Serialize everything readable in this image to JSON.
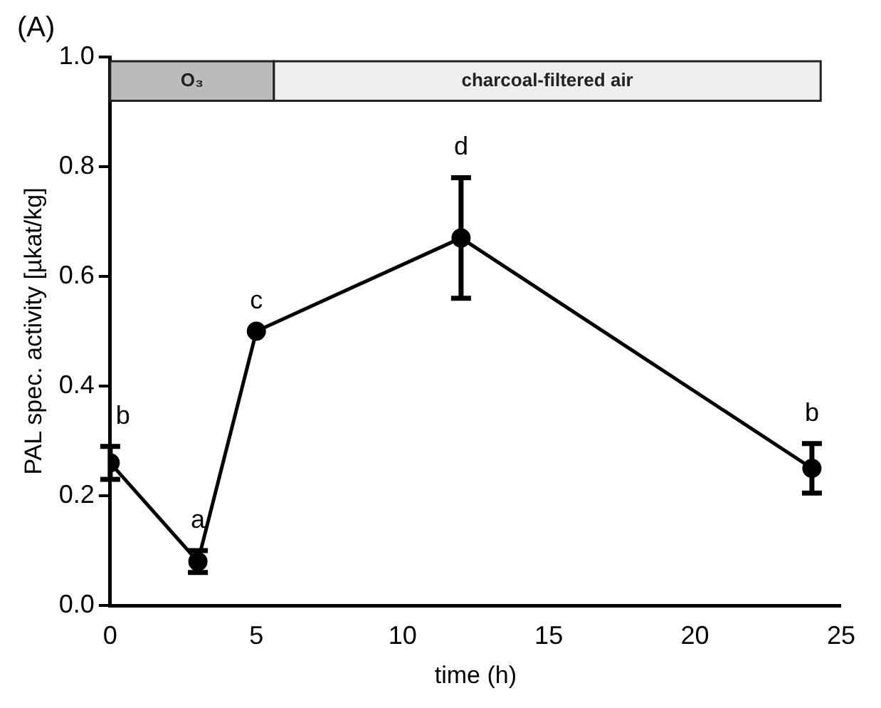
{
  "chart_data": {
    "type": "line",
    "xlabel": "time (h)",
    "ylabel": "PAL spec. activity [µkat/kg]",
    "x": [
      0,
      3,
      5,
      12,
      24
    ],
    "series": [
      {
        "color": "#000000",
        "values": [
          0.26,
          0.08,
          0.5,
          0.67,
          0.25
        ],
        "errors": [
          0.03,
          0.02,
          null,
          0.11,
          0.045
        ]
      }
    ],
    "xlim": [
      0,
      25
    ],
    "xticks": [
      0,
      5,
      10,
      15,
      20,
      25
    ],
    "ylim": [
      0,
      1
    ],
    "yticks": [
      {
        "value": 0,
        "label": "0.0"
      },
      {
        "value": 0.2,
        "label": "0.2"
      },
      {
        "value": 0.4,
        "label": "0.4"
      },
      {
        "value": 0.6,
        "label": "0.6"
      },
      {
        "value": 0.8,
        "label": "0.8"
      },
      {
        "value": 1,
        "label": "1.0"
      }
    ],
    "bands": [
      {
        "axis": "x",
        "from": 0,
        "to": 5.6,
        "label": "O₃",
        "color": "#bbbbbb"
      },
      {
        "axis": "x",
        "from": 5.6,
        "to": 24.3,
        "label": "charcoal-filtered air",
        "color": "#eeeeee"
      }
    ],
    "annotations": [
      "(A)",
      {
        "text": "b",
        "x": 0,
        "y": 0.26
      },
      {
        "text": "a",
        "x": 3,
        "y": 0.08
      },
      {
        "text": "c",
        "x": 5,
        "y": 0.5
      },
      {
        "text": "d",
        "x": 12,
        "y": 0.78
      },
      {
        "text": "b",
        "x": 24,
        "y": 0.25
      }
    ],
    "marker": "circle",
    "line_style": "solid",
    "grid": false,
    "legend": false
  }
}
